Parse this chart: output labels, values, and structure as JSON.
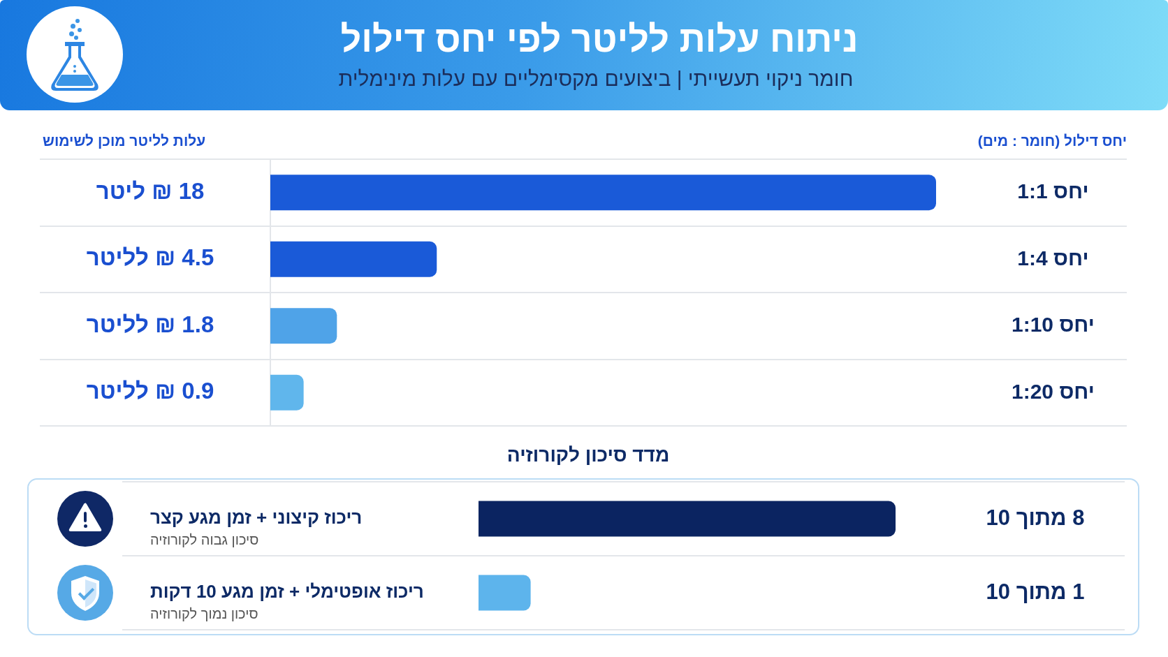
{
  "chart_data": [
    {
      "type": "bar",
      "orientation": "horizontal",
      "title": "ניתוח עלות לליטר לפי יחס דילול",
      "subtitle": "חומר ניקוי תעשייתי | ביצועים מקסימליים עם עלות מינימלית",
      "xlabel": "עלות לליטר מוכן לשימוש",
      "ylabel": "יחס דילול (חומר : מים)",
      "categories": [
        "יחס 1:1",
        "יחס 1:4",
        "1:10 יחס",
        "1:20 יחס"
      ],
      "values": [
        18,
        4.5,
        1.8,
        0.9
      ],
      "colors": [
        "#1a5ad8",
        "#1a5ad8",
        "#4fa3e8",
        "#60b6ec"
      ],
      "value_labels": [
        "18 ₪ ליטר",
        "4.5 ₪ לליטר",
        "1.8 ₪ לליטר",
        "0.9 ₪ לליטר"
      ],
      "grid": "y"
    },
    {
      "type": "bar",
      "orientation": "horizontal",
      "title": "מדד סיכון לקורוזיה",
      "categories": [
        "ריכוז קיצוני + זמן מגע קצר",
        "ריכוז אופטימלי + זמן מגע 10 דקות"
      ],
      "values": [
        8,
        1
      ],
      "colors": [
        "#0b2461",
        "#5db4ec"
      ],
      "value_labels": [
        "8 מתוך 10",
        "1 מתוך 10"
      ],
      "annotations": [
        "סיכון גבוה לקורוזיה",
        "סיכון נמוך לקורוזיה"
      ],
      "grid": "y"
    }
  ]
}
